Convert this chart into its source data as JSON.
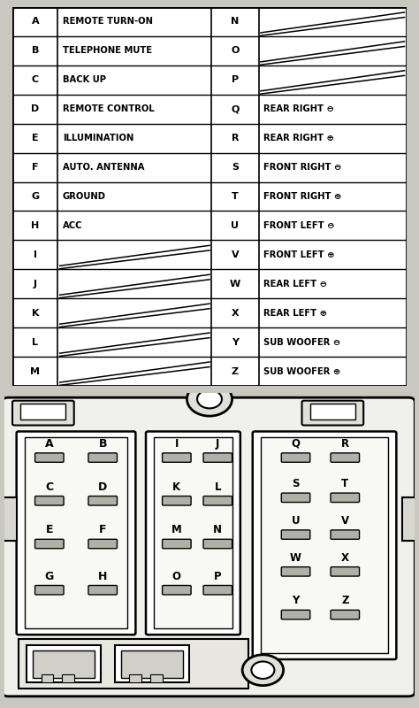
{
  "table_rows": [
    {
      "left_letter": "A",
      "left_label": "REMOTE TURN-ON",
      "right_letter": "N",
      "right_label": "",
      "right_diag": true,
      "left_diag": false
    },
    {
      "left_letter": "B",
      "left_label": "TELEPHONE MUTE",
      "right_letter": "O",
      "right_label": "",
      "right_diag": true,
      "left_diag": false
    },
    {
      "left_letter": "C",
      "left_label": "BACK UP",
      "right_letter": "P",
      "right_label": "",
      "right_diag": true,
      "left_diag": false
    },
    {
      "left_letter": "D",
      "left_label": "REMOTE CONTROL",
      "right_letter": "Q",
      "right_label": "REAR RIGHT ⊖",
      "right_diag": false,
      "left_diag": false
    },
    {
      "left_letter": "E",
      "left_label": "ILLUMINATION",
      "right_letter": "R",
      "right_label": "REAR RIGHT ⊕",
      "right_diag": false,
      "left_diag": false
    },
    {
      "left_letter": "F",
      "left_label": "AUTO. ANTENNA",
      "right_letter": "S",
      "right_label": "FRONT RIGHT ⊖",
      "right_diag": false,
      "left_diag": false
    },
    {
      "left_letter": "G",
      "left_label": "GROUND",
      "right_letter": "T",
      "right_label": "FRONT RIGHT ⊕",
      "right_diag": false,
      "left_diag": false
    },
    {
      "left_letter": "H",
      "left_label": "ACC",
      "right_letter": "U",
      "right_label": "FRONT LEFT ⊖",
      "right_diag": false,
      "left_diag": false
    },
    {
      "left_letter": "I",
      "left_label": "",
      "right_letter": "V",
      "right_label": "FRONT LEFT ⊕",
      "right_diag": false,
      "left_diag": true
    },
    {
      "left_letter": "J",
      "left_label": "",
      "right_letter": "W",
      "right_label": "REAR LEFT ⊖",
      "right_diag": false,
      "left_diag": true
    },
    {
      "left_letter": "K",
      "left_label": "",
      "right_letter": "X",
      "right_label": "REAR LEFT ⊕",
      "right_diag": false,
      "left_diag": true
    },
    {
      "left_letter": "L",
      "left_label": "",
      "right_letter": "Y",
      "right_label": "SUB WOOFER ⊖",
      "right_diag": false,
      "left_diag": true
    },
    {
      "left_letter": "M",
      "left_label": "",
      "right_letter": "Z",
      "right_label": "SUB WOOFER ⊕",
      "right_diag": false,
      "left_diag": true
    }
  ],
  "minus_sym": "⊖",
  "plus_sym": "⊕",
  "left_pins": [
    [
      [
        "A",
        0
      ],
      [
        "B",
        1
      ]
    ],
    [
      [
        "C",
        0
      ],
      [
        "D",
        1
      ]
    ],
    [
      [
        "E",
        0
      ],
      [
        "F",
        1
      ]
    ],
    [
      [
        "G",
        0
      ],
      [
        "H",
        1
      ]
    ]
  ],
  "center_pins": [
    [
      [
        "I",
        0
      ],
      [
        "J",
        1
      ]
    ],
    [
      [
        "K",
        0
      ],
      [
        "L",
        1
      ]
    ],
    [
      [
        "M",
        0
      ],
      [
        "N",
        1
      ]
    ],
    [
      [
        "O",
        0
      ],
      [
        "P",
        1
      ]
    ]
  ],
  "right_pins": [
    [
      [
        "Q",
        0
      ],
      [
        "R",
        1
      ]
    ],
    [
      [
        "S",
        0
      ],
      [
        "T",
        1
      ]
    ],
    [
      [
        "U",
        0
      ],
      [
        "V",
        1
      ]
    ],
    [
      [
        "W",
        0
      ],
      [
        "X",
        1
      ]
    ],
    [
      [
        "Y",
        0
      ],
      [
        "Z",
        1
      ]
    ]
  ]
}
